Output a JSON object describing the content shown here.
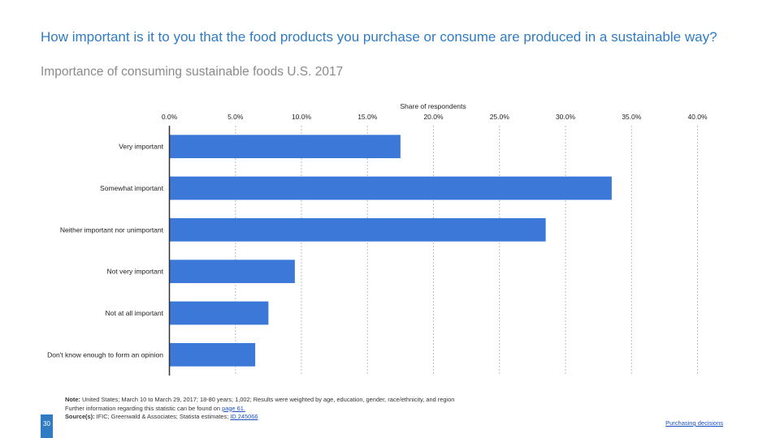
{
  "header": {
    "title": "How important is it to you that the food products you purchase or consume are produced in a sustainable way?",
    "subtitle": "Importance of consuming sustainable foods U.S. 2017"
  },
  "chart_data": {
    "type": "bar",
    "orientation": "horizontal",
    "title": "How important is it to you that the food products you purchase or consume are produced in a sustainable way?",
    "xlabel": "Share of respondents",
    "ylabel": "",
    "xlim": [
      0,
      40
    ],
    "xticks": [
      0,
      5,
      10,
      15,
      20,
      25,
      30,
      35,
      40
    ],
    "tick_labels": [
      "0.0%",
      "5.0%",
      "10.0%",
      "15.0%",
      "20.0%",
      "25.0%",
      "30.0%",
      "35.0%",
      "40.0%"
    ],
    "categories": [
      "Very important",
      "Somewhat important",
      "Neither important nor unimportant",
      "Not very important",
      "Not at all important",
      "Don't know enough to form an opinion"
    ],
    "values": [
      17.5,
      33.5,
      28.5,
      9.5,
      7.5,
      6.5
    ],
    "bar_color": "#3b78d8",
    "grid": true
  },
  "footer": {
    "note_label": "Note:",
    "note_text": " United States; March 10 to March 29, 2017; 18-80 years; 1,002; Results were weighted by age, education, gender, race/ethnicity, and region",
    "further_text": "Further information regarding this statistic can be found on ",
    "further_link": "page 61.",
    "source_label": "Source(s):",
    "source_text": " IFIC; Greenwald & Associates; Statista estimates; ",
    "source_link": "ID 245066",
    "page_number": "30",
    "section_link": "Purchasing decisions"
  }
}
